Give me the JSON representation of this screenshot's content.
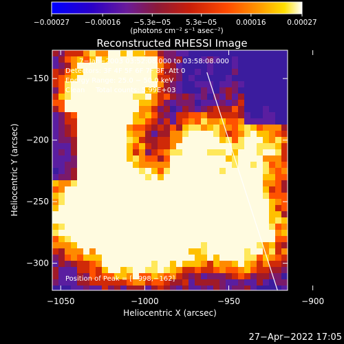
{
  "chart_data": {
    "type": "heatmap",
    "title": "Reconstructed RHESSI Image",
    "xlabel": "Heliocentric X (arcsec)",
    "ylabel": "Heliocentric Y (arcsec)",
    "xlim": [
      -1055,
      -915
    ],
    "ylim": [
      -322,
      -127
    ],
    "xticks": [
      -1050,
      -1000,
      -950,
      -900
    ],
    "xtick_labels": [
      "−1050",
      "−1000",
      "−950",
      "−900"
    ],
    "yticks": [
      -150,
      -200,
      -250,
      -300
    ],
    "ytick_labels": [
      "−150",
      "−200",
      "−250",
      "−300"
    ],
    "colorbar": {
      "min": -0.00027,
      "max": 0.00027,
      "ticks": [
        -0.00027,
        -0.00016,
        -5.3e-05,
        5.3e-05,
        0.00016,
        0.00027
      ],
      "tick_labels": [
        "−0.00027",
        "−0.00016",
        "−5.3e−05",
        "5.3e−05",
        "0.00016",
        "0.00027"
      ],
      "unit_label": "(photons cm⁻² s⁻¹ asec⁻²)"
    },
    "annotations": [
      "7−Jan−2003 03:52:08.000 to 03:58:08.000",
      "Detectors: 3F 4F 5F 6F 7F 8F, Att 0",
      "Energy Range: 25.0 − 50.0 keV",
      "Clean     Total counts: 5.99E+03"
    ],
    "peak_label": "Position of Peak = [−998,−162]",
    "peak_position": [
      -998,
      -162
    ],
    "limb_line": [
      [
        -963,
        -145
      ],
      [
        -921,
        -322
      ]
    ],
    "grid": false
  },
  "footer": {
    "timestamp": "27−Apr−2022 17:05"
  }
}
